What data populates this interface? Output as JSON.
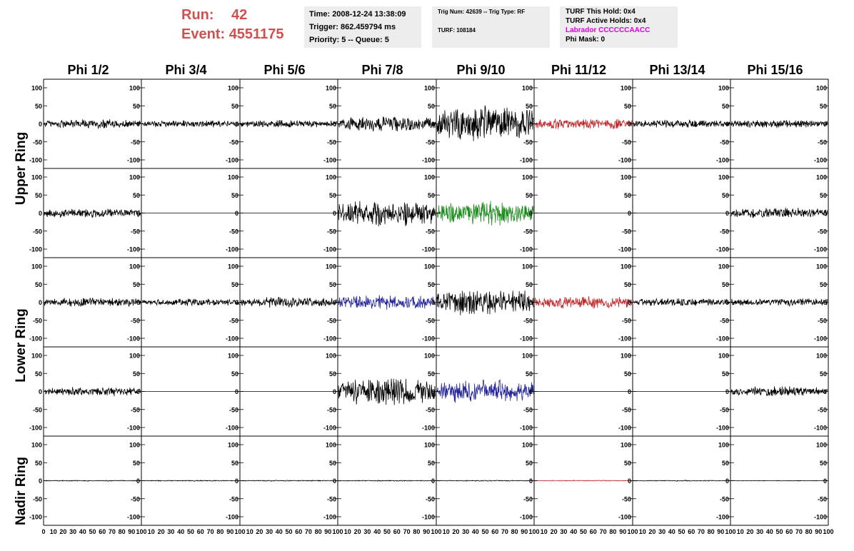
{
  "header": {
    "run_label": "Run:",
    "run_value": "42",
    "event_label": "Event:",
    "event_value": "4551175"
  },
  "info_time": {
    "time": "Time: 2008-12-24 13:38:09",
    "trigger": "Trigger: 862.459794 ms",
    "priority": "Priority: 5 -- Queue: 5"
  },
  "info_trig": {
    "trig": "Trig Num: 42639 -- Trig Type: RF",
    "turf": "TURF: 108184"
  },
  "info_turf": {
    "this_hold": "TURF This Hold: 0x4",
    "active_holds": "TURF Active Holds: 0x4",
    "labrador": "Labrador CCCCCCAACC",
    "phi_mask": "Phi Mask: 0"
  },
  "phi_labels": [
    "Phi 1/2",
    "Phi 3/4",
    "Phi 5/6",
    "Phi 7/8",
    "Phi 9/10",
    "Phi 11/12",
    "Phi 13/14",
    "Phi 15/16"
  ],
  "ring_labels": {
    "upper": "Upper Ring",
    "lower": "Lower Ring",
    "nadir": "Nadir Ring"
  },
  "y_ticks": [
    "100",
    "50",
    "0",
    "-50",
    "-100"
  ],
  "x_ticks": [
    "0",
    "10",
    "20",
    "30",
    "40",
    "50",
    "60",
    "70",
    "80",
    "90",
    "100"
  ],
  "colors": {
    "black": "#000000",
    "red": "#c0282c",
    "green": "#1b8a1b",
    "blue": "#24249a",
    "run_text": "#d05050",
    "labrador": "#e000e0"
  },
  "channels": [
    {
      "row": 0,
      "col": 0,
      "amp": 15,
      "color": "black"
    },
    {
      "row": 0,
      "col": 1,
      "amp": 11,
      "color": "black"
    },
    {
      "row": 0,
      "col": 2,
      "amp": 12,
      "color": "black"
    },
    {
      "row": 0,
      "col": 3,
      "amp": 24,
      "color": "black"
    },
    {
      "row": 0,
      "col": 4,
      "amp": 55,
      "color": "black"
    },
    {
      "row": 0,
      "col": 5,
      "amp": 18,
      "color": "red"
    },
    {
      "row": 0,
      "col": 6,
      "amp": 13,
      "color": "black"
    },
    {
      "row": 0,
      "col": 7,
      "amp": 13,
      "color": "black"
    },
    {
      "row": 1,
      "col": 0,
      "amp": 15,
      "color": "black"
    },
    {
      "row": 1,
      "col": 1,
      "amp": 0,
      "color": "black"
    },
    {
      "row": 1,
      "col": 2,
      "amp": 0,
      "color": "black"
    },
    {
      "row": 1,
      "col": 3,
      "amp": 40,
      "color": "black"
    },
    {
      "row": 1,
      "col": 4,
      "amp": 38,
      "color": "green"
    },
    {
      "row": 1,
      "col": 5,
      "amp": 0,
      "color": "black"
    },
    {
      "row": 1,
      "col": 6,
      "amp": 0,
      "color": "black"
    },
    {
      "row": 1,
      "col": 7,
      "amp": 16,
      "color": "black"
    },
    {
      "row": 2,
      "col": 0,
      "amp": 15,
      "color": "black"
    },
    {
      "row": 2,
      "col": 1,
      "amp": 12,
      "color": "black"
    },
    {
      "row": 2,
      "col": 2,
      "amp": 16,
      "color": "black"
    },
    {
      "row": 2,
      "col": 3,
      "amp": 22,
      "color": "blue"
    },
    {
      "row": 2,
      "col": 4,
      "amp": 40,
      "color": "black"
    },
    {
      "row": 2,
      "col": 5,
      "amp": 20,
      "color": "red"
    },
    {
      "row": 2,
      "col": 6,
      "amp": 12,
      "color": "black"
    },
    {
      "row": 2,
      "col": 7,
      "amp": 13,
      "color": "black"
    },
    {
      "row": 3,
      "col": 0,
      "amp": 14,
      "color": "black"
    },
    {
      "row": 3,
      "col": 1,
      "amp": 0,
      "color": "black"
    },
    {
      "row": 3,
      "col": 2,
      "amp": 0,
      "color": "black"
    },
    {
      "row": 3,
      "col": 3,
      "amp": 45,
      "color": "black"
    },
    {
      "row": 3,
      "col": 4,
      "amp": 38,
      "color": "blue"
    },
    {
      "row": 3,
      "col": 5,
      "amp": 0,
      "color": "black"
    },
    {
      "row": 3,
      "col": 6,
      "amp": 0,
      "color": "black"
    },
    {
      "row": 3,
      "col": 7,
      "amp": 15,
      "color": "black"
    },
    {
      "row": 4,
      "col": 0,
      "amp": 1.5,
      "color": "black"
    },
    {
      "row": 4,
      "col": 1,
      "amp": 1.5,
      "color": "black"
    },
    {
      "row": 4,
      "col": 2,
      "amp": 1.5,
      "color": "black"
    },
    {
      "row": 4,
      "col": 3,
      "amp": 1.5,
      "color": "black"
    },
    {
      "row": 4,
      "col": 4,
      "amp": 1.5,
      "color": "black"
    },
    {
      "row": 4,
      "col": 5,
      "amp": 1.5,
      "color": "red"
    },
    {
      "row": 4,
      "col": 6,
      "amp": 1.5,
      "color": "black"
    },
    {
      "row": 4,
      "col": 7,
      "amp": 1.0,
      "color": "black"
    }
  ]
}
